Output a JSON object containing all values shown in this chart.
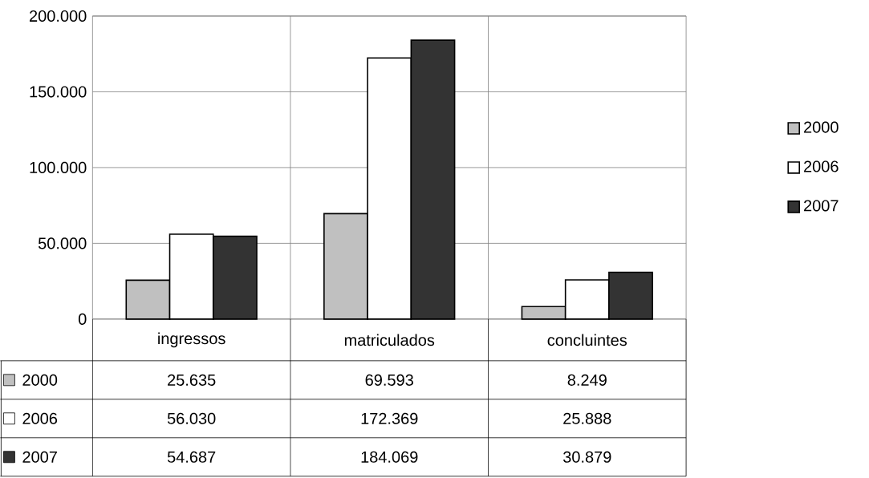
{
  "chart_data": {
    "type": "bar",
    "categories": [
      "ingressos",
      "matriculados",
      "concluintes"
    ],
    "series": [
      {
        "name": "2000",
        "color": "#c0c0c0",
        "values": [
          25635,
          69593,
          8249
        ],
        "value_labels": [
          "25.635",
          "69.593",
          "8.249"
        ]
      },
      {
        "name": "2006",
        "color": "#ffffff",
        "values": [
          56030,
          172369,
          25888
        ],
        "value_labels": [
          "56.030",
          "172.369",
          "25.888"
        ]
      },
      {
        "name": "2007",
        "color": "#333333",
        "values": [
          54687,
          184069,
          30879
        ],
        "value_labels": [
          "54.687",
          "184.069",
          "30.879"
        ]
      }
    ],
    "ylim": [
      0,
      200000
    ],
    "yticks": [
      {
        "value": 0,
        "label": "0"
      },
      {
        "value": 50000,
        "label": "50.000"
      },
      {
        "value": 100000,
        "label": "100.000"
      },
      {
        "value": 150000,
        "label": "150.000"
      },
      {
        "value": 200000,
        "label": "200.000"
      }
    ],
    "grid": "y",
    "legend": "right"
  }
}
